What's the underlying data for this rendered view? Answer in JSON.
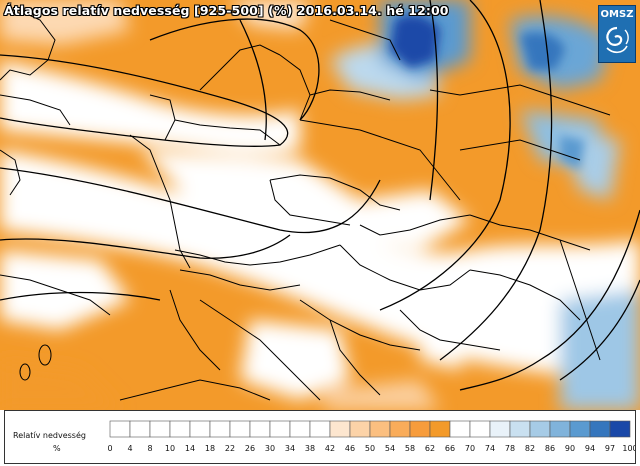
{
  "map": {
    "title": "Átlagos relatív nedvesség [925-500] (%) 2016.03.14. hé 12:00",
    "logo_text": "OMSZ",
    "logo_icon": "swirl-icon",
    "colors": {
      "dry": "#f39a2a",
      "light_orange": "#fbd0a0",
      "neutral": "#ffffff",
      "light_blue": "#bcd9ee",
      "blue": "#5a9ad0",
      "deep_blue": "#1a48a8",
      "border": "#000000"
    }
  },
  "legend": {
    "title": "Relatív nedvesség",
    "unit": "%",
    "ticks": [
      "0",
      "4",
      "8",
      "10",
      "14",
      "18",
      "22",
      "26",
      "30",
      "34",
      "38",
      "42",
      "46",
      "50",
      "54",
      "58",
      "62",
      "66",
      "70",
      "74",
      "78",
      "82",
      "86",
      "90",
      "94",
      "97",
      "100"
    ],
    "colors": [
      "#ffffff",
      "#ffffff",
      "#ffffff",
      "#ffffff",
      "#ffffff",
      "#ffffff",
      "#ffffff",
      "#ffffff",
      "#ffffff",
      "#ffffff",
      "#ffffff",
      "#fde6cf",
      "#fcd3a8",
      "#fbbf80",
      "#f9ac5a",
      "#f79c3c",
      "#f39a2a",
      "#ffffff",
      "#ffffff",
      "#e9f2f9",
      "#c9e0f0",
      "#a6cbe6",
      "#80b3db",
      "#5a9ad0",
      "#3576bd",
      "#1a48a8"
    ]
  }
}
